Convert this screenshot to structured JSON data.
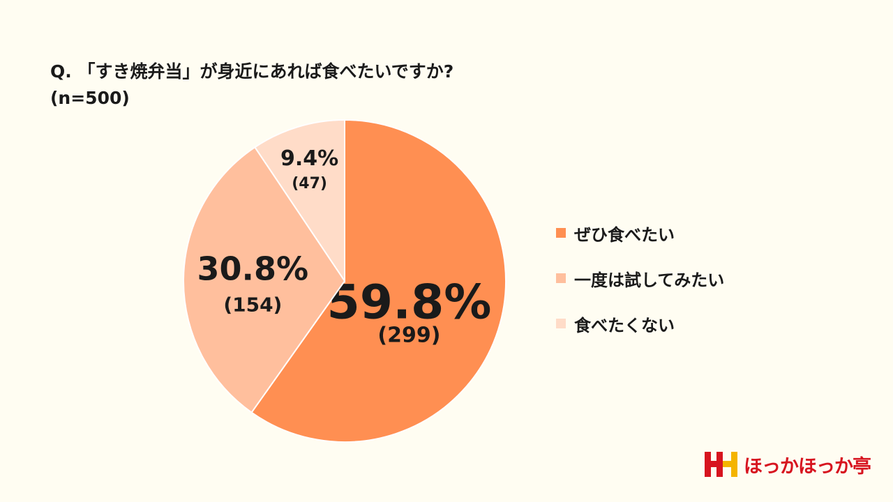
{
  "question": {
    "line1": "Q. 「すき焼弁当」が身近にあれば食べたいですか?",
    "line2": "(n=500)"
  },
  "chart_data": {
    "type": "pie",
    "title": "Q. 「すき焼弁当」が身近にあれば食べたいですか? (n=500)",
    "slices": [
      {
        "label": "ぜひ食べたい",
        "percent": 59.8,
        "count": 299,
        "percent_label": "59.8%",
        "count_label": "(299)",
        "color": "#FF8F52"
      },
      {
        "label": "一度は試してみたい",
        "percent": 30.8,
        "count": 154,
        "percent_label": "30.8%",
        "count_label": "(154)",
        "color": "#FFBF9D"
      },
      {
        "label": "食べたくない",
        "percent": 9.4,
        "count": 47,
        "percent_label": "9.4%",
        "count_label": "(47)",
        "color": "#FFDCC8"
      }
    ],
    "legend_position": "right"
  },
  "legend": {
    "items": [
      {
        "label": "ぜひ食べたい",
        "color": "#FF8F52"
      },
      {
        "label": "一度は試してみたい",
        "color": "#FFBF9D"
      },
      {
        "label": "食べたくない",
        "color": "#FFDCC8"
      }
    ]
  },
  "logo": {
    "text": "ほっかほっか亭",
    "colors": {
      "red": "#D7141F",
      "yellow": "#F4B400"
    }
  }
}
